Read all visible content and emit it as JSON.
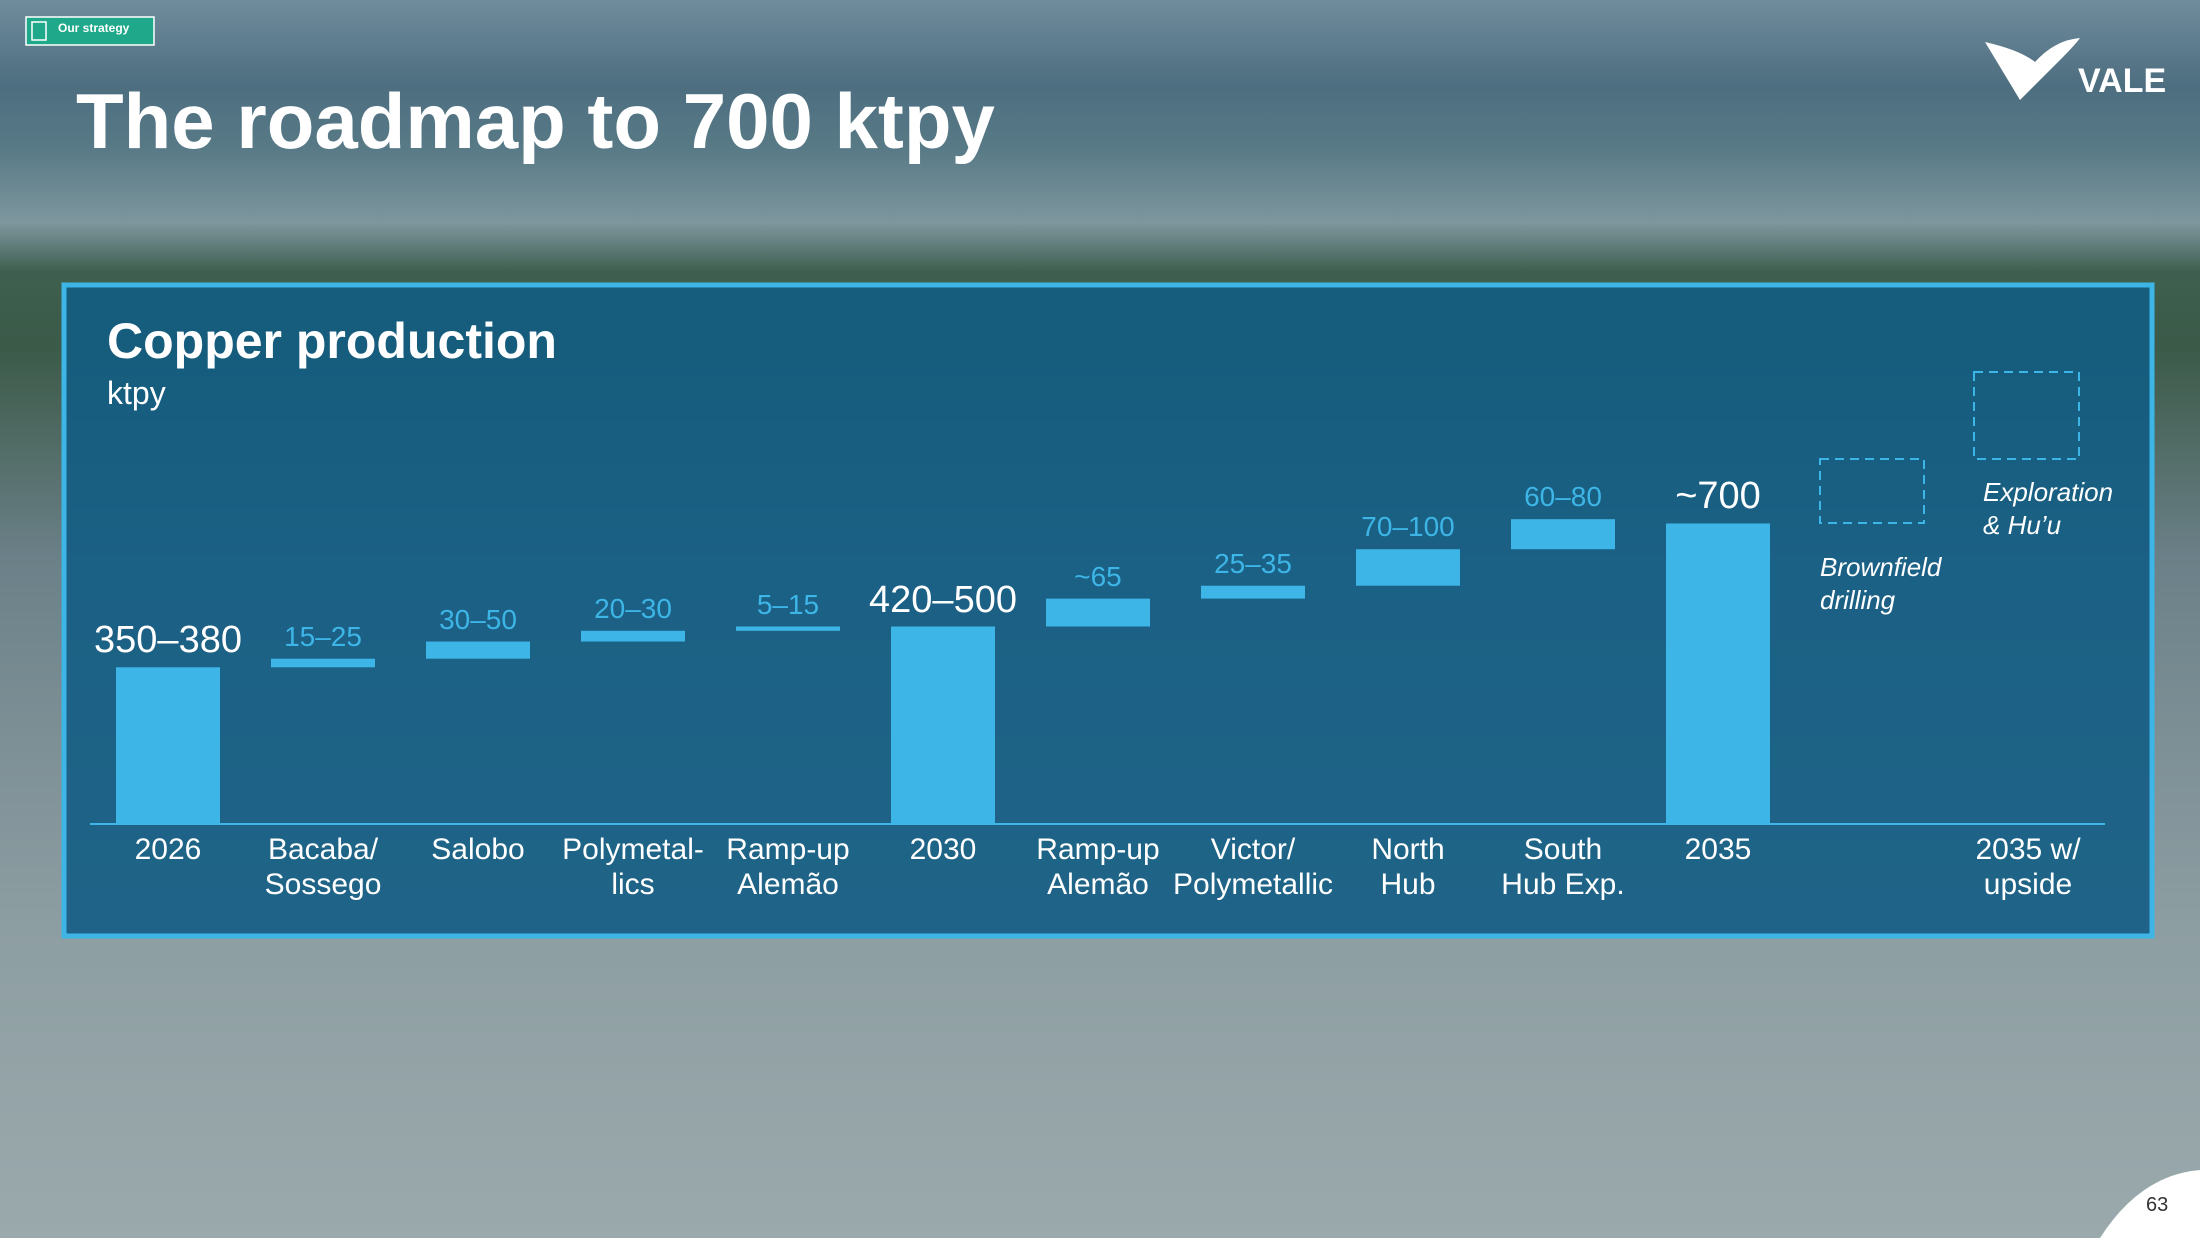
{
  "tag": "Our strategy",
  "title": "The roadmap to 700 ktpy",
  "logo": "VALE",
  "page_number": "63",
  "chart_data": {
    "type": "waterfall",
    "title": "Copper production",
    "subtitle": "ktpy",
    "categories": [
      "2026",
      "Bacaba/\nSossego",
      "Salobo",
      "Polymetal-\nlics",
      "Ramp-up\nAlemão",
      "2030",
      "Ramp-up\nAlemão",
      "Victor/\nPolymetallic",
      "North\nHub",
      "South\nHub Exp.",
      "2035",
      null,
      "2035 w/\nupside"
    ],
    "values": [
      365,
      20,
      40,
      25,
      10,
      460,
      65,
      30,
      85,
      70,
      700,
      null,
      null
    ],
    "value_labels": [
      "350–380",
      "15–25",
      "30–50",
      "20–30",
      "5–15",
      "420–500",
      "~65",
      "25–35",
      "70–100",
      "60–80",
      "~700",
      null,
      null
    ],
    "is_total": [
      true,
      false,
      false,
      false,
      false,
      true,
      false,
      false,
      false,
      false,
      true,
      false,
      false
    ],
    "color": "#3db5e6",
    "ylim": [
      0,
      750
    ],
    "annotations": [
      "Brownfield\ndrilling",
      "Exploration\n& Hu’u"
    ]
  }
}
